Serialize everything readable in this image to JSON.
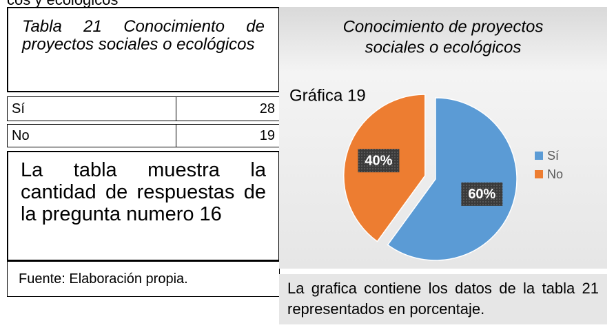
{
  "page_top_fragment": "cos y ecológicos",
  "table": {
    "title": "Tabla 21 Conocimiento de proyectos sociales o ecológicos",
    "rows": [
      [
        "Sí",
        "28"
      ],
      [
        "No",
        "19"
      ]
    ],
    "description": "La tabla muestra la cantidad de respuestas de la pregunta numero 16",
    "source": "Fuente: Elaboración propia."
  },
  "chart_data": {
    "type": "pie",
    "title": "Conocimiento de proyectos sociales o ecológicos",
    "label": "Gráfica 19",
    "categories": [
      "Sí",
      "No"
    ],
    "values": [
      60,
      40
    ],
    "value_labels": [
      "60%",
      "40%"
    ],
    "colors": [
      "#5b9bd5",
      "#ed7d31"
    ],
    "legend": "right"
  },
  "caption": "La grafica contiene los datos de la tabla 21 representados en porcentaje."
}
